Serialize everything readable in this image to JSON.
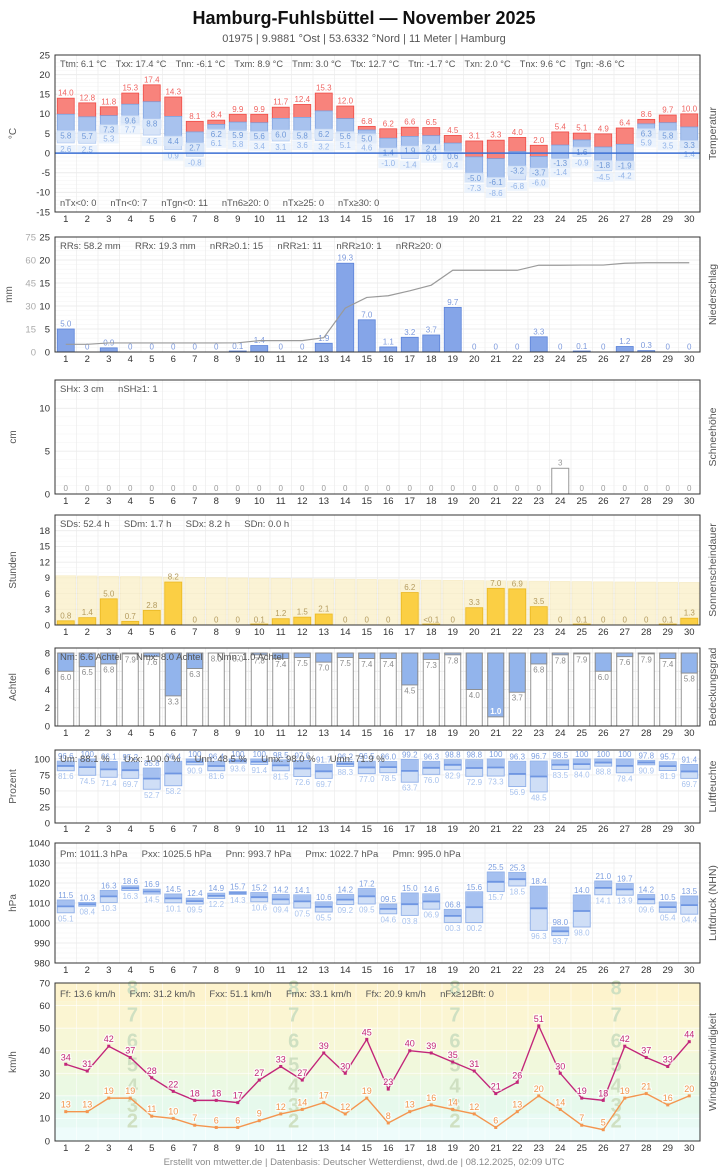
{
  "page": {
    "title": "Hamburg-Fuhlsbüttel  —  November 2025",
    "subtitle": "01975 | 9.9881 °Ost | 53.6332 °Nord | 11 Meter | Hamburg",
    "footer": "Erstellt von mtwetter.de | Datenbasis: Deutscher Wetterdienst, dwd.de | 08.12.2025, 02:09 UTC"
  },
  "colors": {
    "temp_max_bar": "#f8837c",
    "temp_max_border": "#ef4b45",
    "temp_max_label": "#ef6360",
    "temp_min_bar": "#a8c2ee",
    "temp_min_border": "#7fa3e0",
    "temp_min_label": "#6f98d8",
    "temp_ground_bar": "#d7e4f8",
    "temp_ground_border": "#b6cdf2",
    "temp_ground_label": "#93b4e8",
    "zero_line": "#3b6fd4",
    "precip_bar": "#85a5e8",
    "precip_border": "#5b82d8",
    "precip_label": "#7b98db",
    "cumulative_line": "#9a9a9a",
    "snow_border": "#999999",
    "snow_label": "#9a9a9a",
    "sun_bar": "#fbcf44",
    "sun_border": "#eab823",
    "sun_bg": "#faeebf",
    "sun_bg_border": "#f3e4ae",
    "sun_label": "#b49b5e",
    "cloud_fill": "#92b4ec",
    "cloud_border": "#8a8a8a",
    "cloud_label": "#8a8a8a",
    "range_bar_low": "#cfdef6",
    "range_bar_high": "#a5c0f0",
    "range_border": "#8fafe8",
    "range_mean": "#6f96e2",
    "range_max_label": "#7d9fe0",
    "range_min_label": "#a9c3ee",
    "wind_gust": "#c2267a",
    "wind_mean": "#f4954f",
    "beaufort_label": "#cfe0c2",
    "grid": "#ececec",
    "grid_minor": "#f6f6f6",
    "border": "#333333",
    "stats": "#555555",
    "tick": "#333333",
    "tick_gray": "#aaaaaa"
  },
  "chart_data": [
    {
      "id": "temperature",
      "type": "bar",
      "right_label": "Temperatur",
      "ylabel": "°C",
      "ylim": [
        -15,
        25
      ],
      "stats": [
        "Ttm: 6.1 °C",
        "Txx: 17.4 °C",
        "Tnn: -6.1 °C",
        "Txm: 8.9 °C",
        "Tnm: 3.0 °C",
        "Ttx: 12.7 °C",
        "Ttn: -1.7 °C",
        "Txn: 2.0 °C",
        "Tnx: 9.6 °C",
        "Tgn: -8.6 °C"
      ],
      "annotations": [
        "nTx<0: 0",
        "nTn<0: 7",
        "nTgn<0: 11",
        "nTn6≥20: 0",
        "nTx≥25: 0",
        "nTx≥30: 0"
      ],
      "series": [
        {
          "name": "Tmax",
          "values": [
            14.0,
            12.8,
            11.8,
            15.3,
            17.4,
            14.3,
            8.1,
            8.4,
            9.9,
            9.9,
            11.7,
            12.4,
            15.3,
            12.0,
            6.8,
            6.2,
            6.6,
            6.5,
            4.5,
            3.1,
            3.3,
            4.0,
            2.0,
            5.4,
            5.1,
            4.9,
            6.4,
            8.6,
            9.7,
            10.0
          ]
        },
        {
          "name": "Tmin",
          "values": [
            5.8,
            5.7,
            7.3,
            9.6,
            8.8,
            4.4,
            2.7,
            6.2,
            5.9,
            5.6,
            6.0,
            5.8,
            6.2,
            5.6,
            5.0,
            1.4,
            1.9,
            2.4,
            0.6,
            -5.0,
            -6.1,
            -3.2,
            -3.7,
            -1.3,
            1.6,
            -1.8,
            -1.9,
            6.3,
            5.8,
            3.3
          ]
        },
        {
          "name": "Tgmin",
          "values": [
            2.6,
            2.5,
            5.3,
            7.7,
            4.6,
            0.9,
            -0.8,
            6.1,
            5.8,
            3.4,
            3.1,
            3.6,
            3.2,
            5.1,
            4.6,
            -1.0,
            -1.4,
            0.9,
            0.4,
            -7.3,
            -8.6,
            -6.8,
            -6.0,
            -1.4,
            -0.9,
            -4.5,
            -4.2,
            5.9,
            3.5,
            1.4
          ]
        }
      ]
    },
    {
      "id": "precipitation",
      "type": "bar",
      "right_label": "Niederschlag",
      "ylabel": "mm",
      "ylim": [
        0,
        25
      ],
      "ylim_secondary": [
        0,
        75
      ],
      "stats": [
        "RRs: 58.2 mm",
        "RRx: 19.3 mm",
        "nRR≥0.1: 15",
        "nRR≥1: 11",
        "nRR≥10: 1",
        "nRR≥20: 0"
      ],
      "values": [
        5.0,
        0,
        0.9,
        0,
        0,
        0,
        0,
        0,
        0.1,
        1.4,
        0,
        0,
        1.9,
        19.3,
        7.0,
        1.1,
        3.2,
        3.7,
        9.7,
        0,
        0,
        0,
        3.3,
        0,
        0.1,
        0,
        1.2,
        0.3,
        0,
        0
      ]
    },
    {
      "id": "snow",
      "type": "bar",
      "right_label": "Schneehöhe",
      "ylabel": "cm",
      "ylim": [
        0,
        13.3
      ],
      "stats": [
        "SHx: 3 cm",
        "nSH≥1: 1"
      ],
      "values": [
        0,
        0,
        0,
        0,
        0,
        0,
        0,
        0,
        0,
        0,
        0,
        0,
        0,
        0,
        0,
        0,
        0,
        0,
        0,
        0,
        0,
        0,
        0,
        3,
        0,
        0,
        0,
        0,
        0,
        0
      ]
    },
    {
      "id": "sunshine",
      "type": "bar",
      "right_label": "Sonnenscheindauer",
      "ylabel": "Stunden",
      "ylim": [
        0,
        21
      ],
      "stats": [
        "SDs: 52.4 h",
        "SDm: 1.7 h",
        "SDx: 8.2 h",
        "SDn: 0.0 h"
      ],
      "labels": [
        "0.8",
        "1.4",
        "5.0",
        "0.7",
        "2.8",
        "8.2",
        "0",
        "0",
        "0",
        "0.1",
        "1.2",
        "1.5",
        "2.1",
        "0",
        "0",
        "0",
        "6.2",
        "<0.1",
        "0",
        "3.3",
        "7.0",
        "6.9",
        "3.5",
        "0",
        "0.1",
        "0",
        "0",
        "0",
        "0.1",
        "1.3"
      ],
      "daylight_hours": [
        9.4,
        9.35,
        9.29,
        9.24,
        9.19,
        9.13,
        9.08,
        9.03,
        8.98,
        8.93,
        8.88,
        8.83,
        8.78,
        8.73,
        8.69,
        8.64,
        8.6,
        8.55,
        8.51,
        8.47,
        8.43,
        8.39,
        8.35,
        8.31,
        8.28,
        8.24,
        8.21,
        8.18,
        8.15,
        8.12
      ]
    },
    {
      "id": "cloudcover",
      "type": "bar",
      "right_label": "Bedeckungsgrad",
      "ylabel": "Achtel",
      "ylim": [
        0,
        8.55
      ],
      "full_scale": 8,
      "stats": [
        "Nm: 6.6 Achtel",
        "Nmx: 8.0 Achtel",
        "Nmn: 1.0 Achtel"
      ],
      "values": [
        6.0,
        6.5,
        6.8,
        7.9,
        7.6,
        3.3,
        6.3,
        8.0,
        8.0,
        7.8,
        7.4,
        7.5,
        7.0,
        7.5,
        7.4,
        7.4,
        4.5,
        7.3,
        7.8,
        4.0,
        1.0,
        3.7,
        6.8,
        7.8,
        7.9,
        6.0,
        7.6,
        7.9,
        7.4,
        5.8
      ]
    },
    {
      "id": "humidity",
      "type": "range",
      "right_label": "Luftfeuchte",
      "ylabel": "Prozent",
      "ylim": [
        0,
        114
      ],
      "stats": [
        "Um: 88.1 %",
        "Uxx: 100.0 %",
        "Unn: 48.5 %",
        "Umx: 98.0 %",
        "Umn: 71.9 %"
      ],
      "series": [
        {
          "name": "max",
          "values": [
            96.6,
            100,
            96.1,
            95.2,
            85.8,
            96.4,
            100,
            96.4,
            100,
            100,
            98.5,
            97.6,
            91.7,
            96.2,
            96.5,
            96.0,
            99.2,
            96.3,
            98.8,
            98.8,
            100,
            96.3,
            96.7,
            98.5,
            100,
            100,
            100,
            97.8,
            95.7,
            91.4
          ]
        },
        {
          "name": "min",
          "values": [
            81.6,
            74.5,
            71.4,
            69.7,
            52.7,
            58.2,
            90.9,
            81.6,
            93.6,
            91.4,
            81.5,
            72.6,
            69.7,
            88.3,
            77.0,
            78.5,
            63.7,
            76.0,
            82.9,
            72.9,
            73.3,
            56.9,
            48.5,
            83.5,
            84.0,
            88.8,
            78.4,
            90.9,
            81.9,
            69.7
          ]
        }
      ]
    },
    {
      "id": "pressure",
      "type": "range",
      "right_label": "Luftdruck (NHN)",
      "ylabel": "hPa",
      "ylim": [
        980,
        1040
      ],
      "stats": [
        "Pm: 1011.3 hPa",
        "Pxx: 1025.5 hPa",
        "Pnn: 993.7 hPa",
        "Pmx: 1022.7 hPa",
        "Pmn: 995.0 hPa"
      ],
      "series": [
        {
          "name": "max",
          "values": [
            1011.5,
            1010.3,
            1016.3,
            1018.6,
            1016.9,
            1014.5,
            1012.4,
            1014.9,
            1015.7,
            1015.2,
            1014.2,
            1014.1,
            1010.6,
            1014.2,
            1017.2,
            1009.5,
            1015.0,
            1014.6,
            1006.8,
            1015.6,
            1025.5,
            1025.3,
            1018.4,
            998.0,
            1014.0,
            1021.0,
            1019.7,
            1014.2,
            1010.5,
            1013.5
          ]
        },
        {
          "name": "min",
          "values": [
            1005.1,
            1008.4,
            1010.3,
            1016.3,
            1014.5,
            1010.1,
            1009.5,
            1012.2,
            1014.3,
            1010.6,
            1009.4,
            1007.5,
            1005.5,
            1009.2,
            1009.5,
            1004.6,
            1003.8,
            1006.9,
            1000.3,
            1000.2,
            1015.7,
            1018.5,
            996.3,
            993.7,
            998.0,
            1014.1,
            1013.9,
            1009.6,
            1005.4,
            1004.4
          ]
        }
      ]
    },
    {
      "id": "wind",
      "type": "line",
      "right_label": "Windgeschwindigkeit",
      "ylabel": "km/h",
      "ylim": [
        0,
        70
      ],
      "stats": [
        "Ff: 13.6 km/h",
        "Fxm: 31.2 km/h",
        "Fxx: 51.1 km/h",
        "Fmx: 33.1 km/h",
        "Ffx: 20.9 km/h",
        "nFx≥12Bft: 0"
      ],
      "series": [
        {
          "name": "gust",
          "values": [
            34,
            31,
            42,
            37,
            28,
            22,
            18,
            18,
            17,
            27,
            33,
            27,
            39,
            30,
            45,
            23,
            40,
            39,
            35,
            31,
            21,
            26,
            51,
            30,
            19,
            18,
            42,
            37,
            33,
            44
          ]
        },
        {
          "name": "mean",
          "values": [
            13,
            13,
            19,
            19,
            11,
            10,
            7,
            6,
            6,
            9,
            12,
            14,
            17,
            12,
            19,
            8,
            13,
            16,
            14,
            12,
            6,
            13,
            20,
            14,
            7,
            5,
            19,
            21,
            16,
            20
          ]
        }
      ],
      "beaufort_bands": [
        {
          "bft": null,
          "from": 0,
          "to": 6,
          "color": "#eefcfb"
        },
        {
          "bft": 2,
          "from": 6,
          "to": 12,
          "color": "#e8faf4"
        },
        {
          "bft": 3,
          "from": 12,
          "to": 20,
          "color": "#e6f9ec"
        },
        {
          "bft": 4,
          "from": 20,
          "to": 29,
          "color": "#ebf9e3"
        },
        {
          "bft": 5,
          "from": 29,
          "to": 39,
          "color": "#f1f8dc"
        },
        {
          "bft": 6,
          "from": 39,
          "to": 50,
          "color": "#f7f7d7"
        },
        {
          "bft": 7,
          "from": 50,
          "to": 62,
          "color": "#fbf5d2"
        },
        {
          "bft": 8,
          "from": 62,
          "to": 74,
          "color": "#fdf3cd"
        }
      ]
    }
  ]
}
